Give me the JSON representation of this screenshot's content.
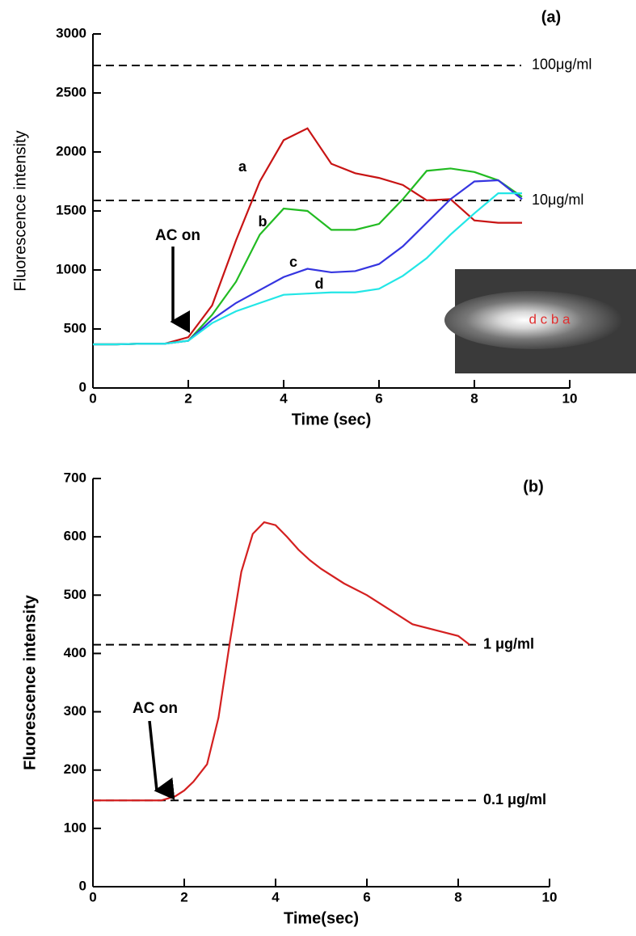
{
  "chart_data": [
    {
      "type": "line",
      "panel_label": "(a)",
      "x_label": "Time (sec)",
      "y_label": "Fluorescence intensity",
      "x": [
        0,
        0.5,
        1,
        1.5,
        2,
        2.5,
        3,
        3.5,
        4,
        4.5,
        5,
        5.5,
        6,
        6.5,
        7,
        7.5,
        8,
        8.5,
        9
      ],
      "series": [
        {
          "name": "a",
          "color": "#c81414",
          "values": [
            370,
            370,
            375,
            375,
            430,
            700,
            1250,
            1750,
            2100,
            2200,
            1900,
            1820,
            1780,
            1720,
            1590,
            1600,
            1420,
            1400,
            1400
          ]
        },
        {
          "name": "b",
          "color": "#22bb22",
          "values": [
            370,
            370,
            375,
            375,
            400,
            620,
            900,
            1300,
            1520,
            1500,
            1340,
            1340,
            1390,
            1600,
            1840,
            1860,
            1830,
            1760,
            1620
          ]
        },
        {
          "name": "c",
          "color": "#3535e0",
          "values": [
            370,
            370,
            375,
            375,
            400,
            580,
            720,
            830,
            940,
            1010,
            980,
            990,
            1050,
            1200,
            1400,
            1600,
            1750,
            1760,
            1600
          ]
        },
        {
          "name": "d",
          "color": "#22e6e6",
          "values": [
            370,
            370,
            375,
            375,
            400,
            550,
            650,
            720,
            790,
            800,
            810,
            810,
            840,
            950,
            1100,
            1300,
            1480,
            1650,
            1650
          ]
        }
      ],
      "reference_lines": [
        {
          "value": 2733,
          "label": "100μg/ml"
        },
        {
          "value": 1589,
          "label": "10μg/ml"
        }
      ],
      "annotation": "AC on",
      "inset_text": "d c b a",
      "xlim": [
        0,
        10
      ],
      "xticks": [
        0,
        2,
        4,
        6,
        8,
        10
      ],
      "ylim": [
        0,
        3000
      ],
      "yticks": [
        0,
        500,
        1000,
        1500,
        2000,
        2500,
        3000
      ]
    },
    {
      "type": "line",
      "panel_label": "(b)",
      "x_label": "Time(sec)",
      "y_label": "Fluorescence intensity",
      "x": [
        0,
        0.5,
        1,
        1.5,
        1.8,
        2,
        2.2,
        2.5,
        2.75,
        3,
        3.25,
        3.5,
        3.75,
        4,
        4.25,
        4.5,
        4.75,
        5,
        5.5,
        6,
        6.5,
        7,
        7.5,
        8,
        8.25
      ],
      "series": [
        {
          "color": "#d42020",
          "values": [
            148,
            148,
            148,
            148,
            155,
            165,
            180,
            210,
            290,
            420,
            540,
            605,
            625,
            620,
            600,
            578,
            560,
            545,
            520,
            500,
            475,
            450,
            440,
            430,
            415
          ]
        }
      ],
      "reference_lines": [
        {
          "value": 415,
          "label": "1 μg/ml"
        },
        {
          "value": 148,
          "label": "0.1 μg/ml"
        }
      ],
      "annotation": "AC on",
      "xlim": [
        0,
        10
      ],
      "xticks": [
        0,
        2,
        4,
        6,
        8,
        10
      ],
      "ylim": [
        0,
        700
      ],
      "yticks": [
        0,
        100,
        200,
        300,
        400,
        500,
        600,
        700
      ]
    }
  ]
}
